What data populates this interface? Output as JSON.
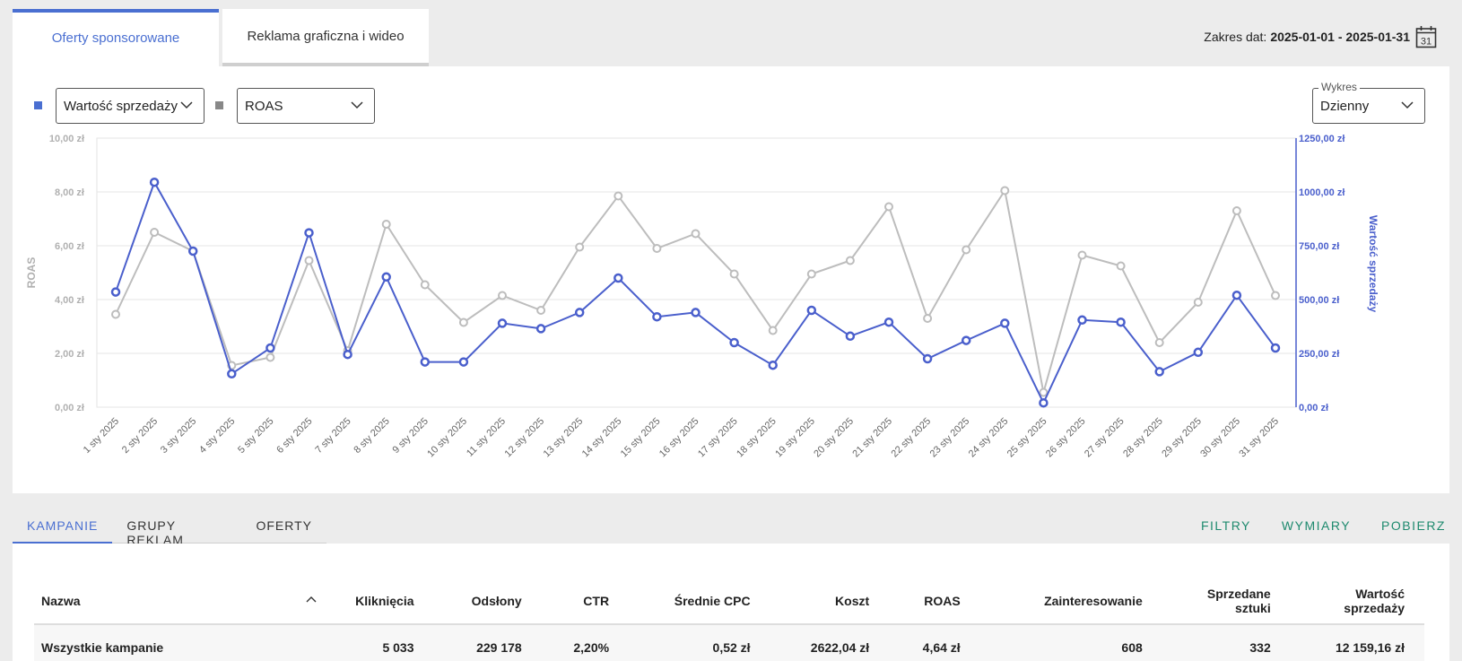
{
  "top_tabs": [
    {
      "label": "Oferty sponsorowane",
      "active": true
    },
    {
      "label": "Reklama graficzna i wideo",
      "active": false
    }
  ],
  "date_range": {
    "label": "Zakres dat:",
    "value": "2025-01-01 - 2025-01-31",
    "calendar_day": "31"
  },
  "controls": {
    "primary_metric": "Wartość sprzedaży",
    "secondary_metric": "ROAS",
    "chart_mode_label": "Wykres",
    "chart_mode_value": "Dzienny"
  },
  "colors": {
    "primary": "#4a5fcc",
    "secondary": "#bdbdbd",
    "accent": "#4a6fd1",
    "action": "#1e8a6e"
  },
  "chart_data": {
    "type": "line",
    "x": [
      "1 sty 2025",
      "2 sty 2025",
      "3 sty 2025",
      "4 sty 2025",
      "5 sty 2025",
      "6 sty 2025",
      "7 sty 2025",
      "8 sty 2025",
      "9 sty 2025",
      "10 sty 2025",
      "11 sty 2025",
      "12 sty 2025",
      "13 sty 2025",
      "14 sty 2025",
      "15 sty 2025",
      "16 sty 2025",
      "17 sty 2025",
      "18 sty 2025",
      "19 sty 2025",
      "20 sty 2025",
      "21 sty 2025",
      "22 sty 2025",
      "23 sty 2025",
      "24 sty 2025",
      "25 sty 2025",
      "26 sty 2025",
      "27 sty 2025",
      "28 sty 2025",
      "29 sty 2025",
      "30 sty 2025",
      "31 sty 2025"
    ],
    "series": [
      {
        "name": "Wartość sprzedaży",
        "axis": "right",
        "values": [
          535,
          1045,
          725,
          155,
          275,
          810,
          245,
          605,
          210,
          210,
          390,
          365,
          440,
          600,
          420,
          440,
          300,
          195,
          450,
          330,
          395,
          225,
          310,
          390,
          20,
          405,
          395,
          165,
          255,
          520,
          275
        ]
      },
      {
        "name": "ROAS",
        "axis": "left",
        "values": [
          3.45,
          6.5,
          5.8,
          1.55,
          1.85,
          5.45,
          2.1,
          6.8,
          4.55,
          3.15,
          4.15,
          3.6,
          5.95,
          7.85,
          5.9,
          6.45,
          4.95,
          2.85,
          4.95,
          5.45,
          7.45,
          3.3,
          5.85,
          8.05,
          0.55,
          5.65,
          5.25,
          2.4,
          3.9,
          7.3,
          4.15
        ]
      }
    ],
    "left_axis": {
      "label": "ROAS",
      "ticks": [
        "0,00 zł",
        "2,00 zł",
        "4,00 zł",
        "6,00 zł",
        "8,00 zł",
        "10,00 zł"
      ],
      "range": [
        0,
        10
      ]
    },
    "right_axis": {
      "label": "Wartość sprzedaży",
      "ticks": [
        "0,00 zł",
        "250,00 zł",
        "500,00 zł",
        "750,00 zł",
        "1000,00 zł",
        "1250,00 zł"
      ],
      "range": [
        0,
        1250
      ]
    },
    "grid": true
  },
  "bottom_tabs": [
    {
      "label": "KAMPANIE",
      "active": true
    },
    {
      "label": "GRUPY REKLAM",
      "active": false
    },
    {
      "label": "OFERTY",
      "active": false
    }
  ],
  "actions": [
    "FILTRY",
    "WYMIARY",
    "POBIERZ"
  ],
  "table": {
    "headers": [
      "Nazwa",
      "Kliknięcia",
      "Odsłony",
      "CTR",
      "Średnie CPC",
      "Koszt",
      "ROAS",
      "Zainteresowanie",
      "Sprzedane sztuki",
      "Wartość sprzedaży"
    ],
    "rows": [
      [
        "Wszystkie kampanie",
        "5 033",
        "229 178",
        "2,20%",
        "0,52 zł",
        "2622,04 zł",
        "4,64 zł",
        "608",
        "332",
        "12 159,16 zł"
      ]
    ]
  }
}
